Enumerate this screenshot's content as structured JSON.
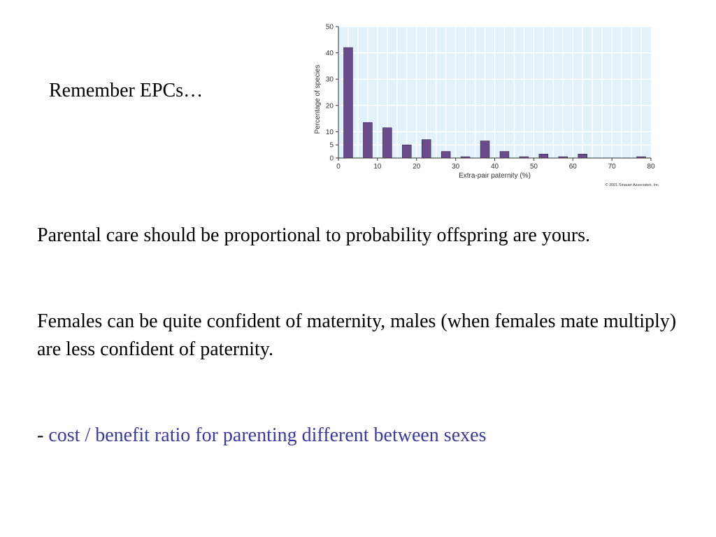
{
  "slide": {
    "title": "Remember EPCs…",
    "paragraph_1": "Parental care should be proportional to probability offspring are yours.",
    "paragraph_2": "Females can be quite confident of maternity, males (when females mate multiply) are less confident of paternity.",
    "bullet_prefix": "- ",
    "bullet_text": "cost / benefit ratio for parenting different between sexes"
  },
  "colors": {
    "accent_text": "#3a3a9a",
    "bar_fill": "#6a4b8c",
    "plot_background": "#e3f1fb",
    "gridline": "#ffffff"
  },
  "chart_data": {
    "type": "bar",
    "xlabel": "Extra-pair paternity (%)",
    "ylabel": "Percentage of species",
    "copyright": "© 2001 Sinauer Associates, Inc",
    "xlim": [
      0,
      80
    ],
    "ylim": [
      0,
      50
    ],
    "xticks": [
      0,
      10,
      20,
      30,
      40,
      50,
      60,
      70,
      80
    ],
    "yticks": [
      0,
      5,
      10,
      20,
      30,
      40,
      50
    ],
    "x": [
      2.5,
      7.5,
      12.5,
      17.5,
      22.5,
      27.5,
      32.5,
      37.5,
      42.5,
      47.5,
      52.5,
      57.5,
      62.5,
      67.5,
      72.5,
      77.5
    ],
    "values": [
      42,
      13.5,
      11.5,
      5,
      7,
      2.5,
      0.5,
      6.5,
      2.5,
      0.5,
      1.5,
      0.5,
      1.5,
      0,
      0,
      0.5
    ],
    "grid": true
  }
}
